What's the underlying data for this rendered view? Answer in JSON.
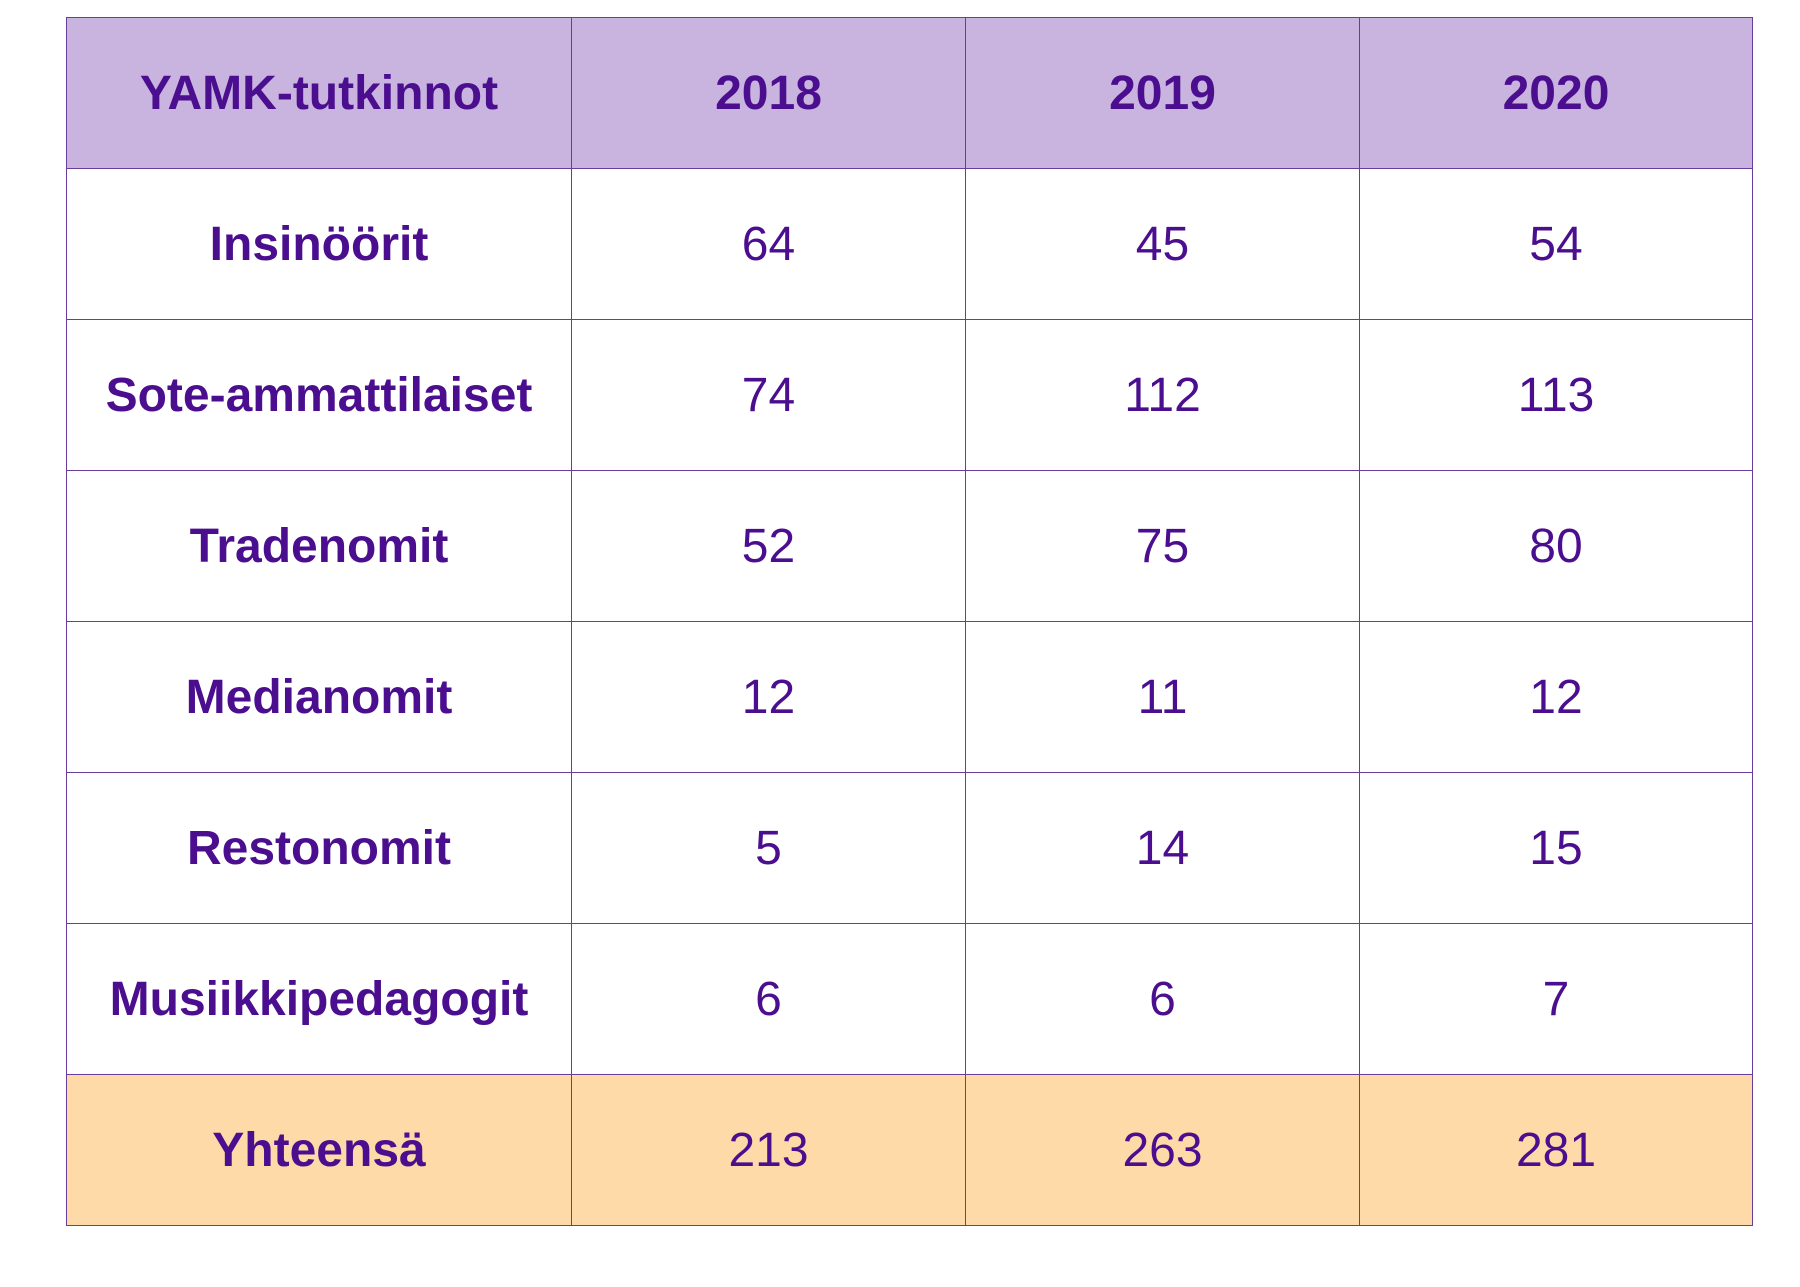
{
  "table": {
    "header": [
      "YAMK-tutkinnot",
      "2018",
      "2019",
      "2020"
    ],
    "rows": [
      [
        "Insinöörit",
        64,
        45,
        54
      ],
      [
        "Sote-ammattilaiset",
        74,
        112,
        113
      ],
      [
        "Tradenomit",
        52,
        75,
        80
      ],
      [
        "Medianomit",
        12,
        11,
        12
      ],
      [
        "Restonomit",
        5,
        14,
        15
      ],
      [
        "Musiikkipedagogit",
        6,
        6,
        7
      ]
    ],
    "footer": [
      "Yhteensä",
      213,
      263,
      281
    ]
  }
}
